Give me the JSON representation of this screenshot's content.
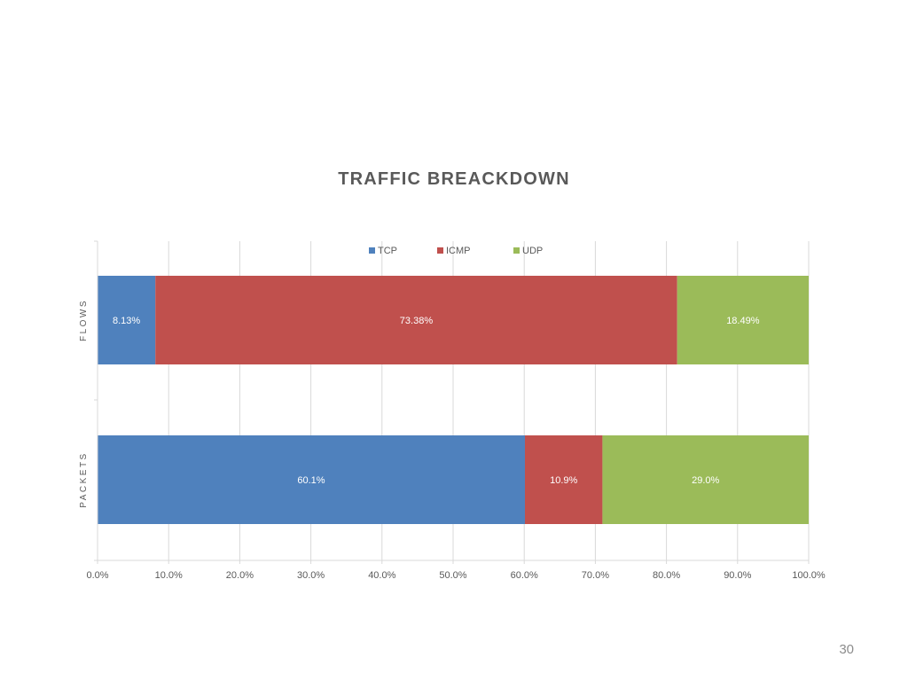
{
  "page": {
    "page_number": "30"
  },
  "chart_data": {
    "type": "bar",
    "orientation": "horizontal",
    "stacked": "100%",
    "title": "TRAFFIC BREACKDOWN",
    "xlabel": "",
    "ylabel": "",
    "xlim": [
      0,
      100
    ],
    "x_ticks": [
      "0.0%",
      "10.0%",
      "20.0%",
      "30.0%",
      "40.0%",
      "50.0%",
      "60.0%",
      "70.0%",
      "80.0%",
      "90.0%",
      "100.0%"
    ],
    "categories": [
      "FLOWS",
      "PACKETS"
    ],
    "series": [
      {
        "name": "TCP",
        "color": "#4f81bd",
        "values": [
          8.13,
          60.1
        ],
        "labels": [
          "8.13%",
          "60.1%"
        ]
      },
      {
        "name": "ICMP",
        "color": "#c0504d",
        "values": [
          73.38,
          10.9
        ],
        "labels": [
          "73.38%",
          "10.9%"
        ]
      },
      {
        "name": "UDP",
        "color": "#9bbb59",
        "values": [
          18.49,
          29.0
        ],
        "labels": [
          "18.49%",
          "29.0%"
        ]
      }
    ],
    "legend_position": "top",
    "grid": true
  }
}
